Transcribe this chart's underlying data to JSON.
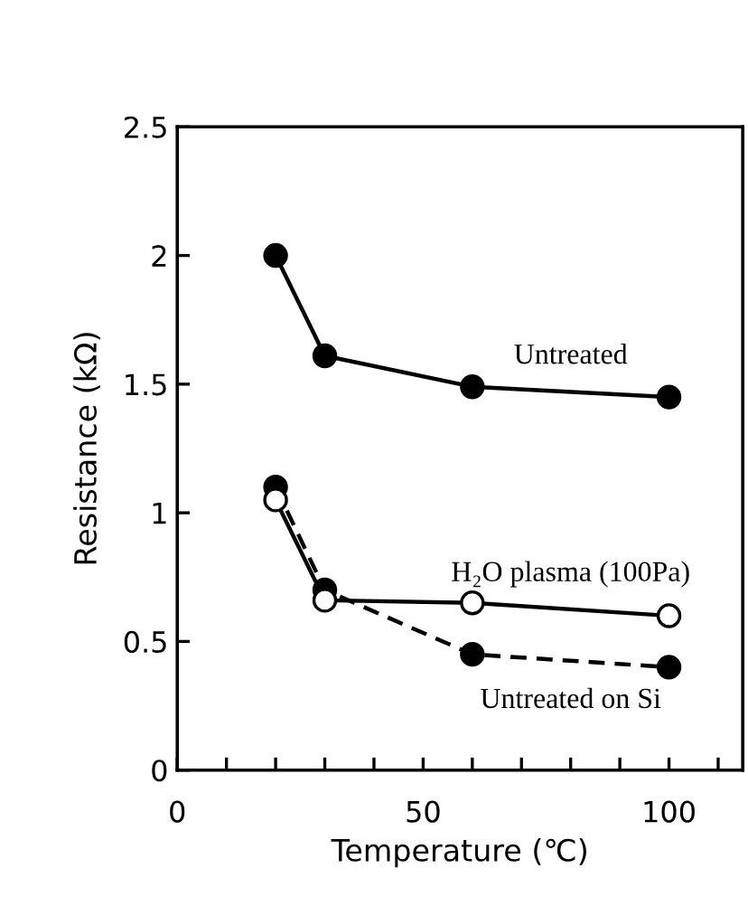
{
  "chart_data": {
    "type": "line",
    "xlabel": "Temperature (℃)",
    "ylabel": "Resistance (kΩ)",
    "xlim": [
      0,
      115
    ],
    "ylim": [
      0,
      2.5
    ],
    "xticks": [
      0,
      {
        "value": 10,
        "label": null
      },
      {
        "value": 20,
        "label": null
      },
      {
        "value": 30,
        "label": null
      },
      {
        "value": 40,
        "label": null
      },
      50,
      {
        "value": 60,
        "label": null
      },
      {
        "value": 70,
        "label": null
      },
      {
        "value": 80,
        "label": null
      },
      {
        "value": 90,
        "label": null
      },
      100,
      {
        "value": 110,
        "label": null
      }
    ],
    "yticks": [
      0,
      0.5,
      1,
      1.5,
      2,
      2.5
    ],
    "grid": false,
    "legend": false,
    "marker": "circle",
    "series": [
      {
        "name": "Untreated",
        "color": "#000000",
        "line_style": "solid",
        "x": [
          20,
          30,
          60,
          100
        ],
        "values": [
          2.0,
          1.61,
          1.49,
          1.45
        ]
      },
      {
        "name": "Untreated on Si",
        "color": "#000000",
        "line_style": "dashed",
        "x": [
          20,
          30,
          60,
          100
        ],
        "values": [
          1.1,
          0.7,
          0.45,
          0.4
        ]
      },
      {
        "name": "H₂O plasma (100Pa)",
        "color": "#ffffff",
        "line_style": "solid",
        "x": [
          20,
          30,
          60,
          100
        ],
        "values": [
          1.05,
          0.66,
          0.65,
          0.6
        ]
      }
    ]
  }
}
